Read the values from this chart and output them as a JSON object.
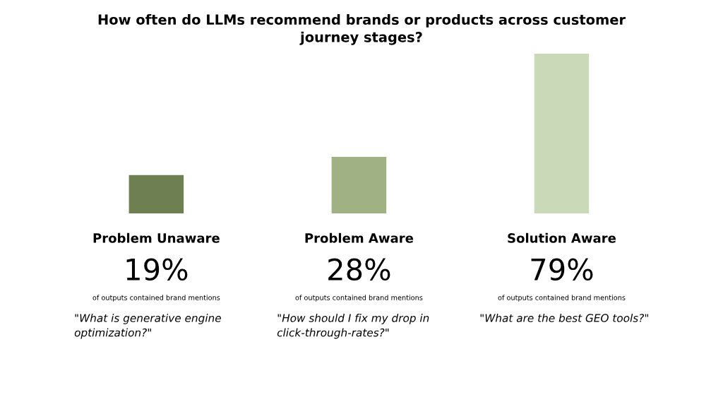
{
  "chart_data": {
    "type": "bar",
    "title": "How often do LLMs recommend brands or products across customer journey stages?",
    "categories": [
      "Problem Unaware",
      "Problem Aware",
      "Solution Aware"
    ],
    "values": [
      19,
      28,
      79
    ],
    "value_labels": [
      "19%",
      "28%",
      "79%"
    ],
    "colors": [
      "#6e8052",
      "#a0b283",
      "#cadab9"
    ],
    "annotations": [
      "of outputs contained brand mentions",
      "of outputs contained brand mentions",
      "of outputs contained brand mentions",
      "\"What is generative engine optimization?\"",
      "\"How should I fix my drop in click-through-rates?\"",
      "\"What are the best GEO tools?\""
    ],
    "grid": false,
    "legend": false
  }
}
